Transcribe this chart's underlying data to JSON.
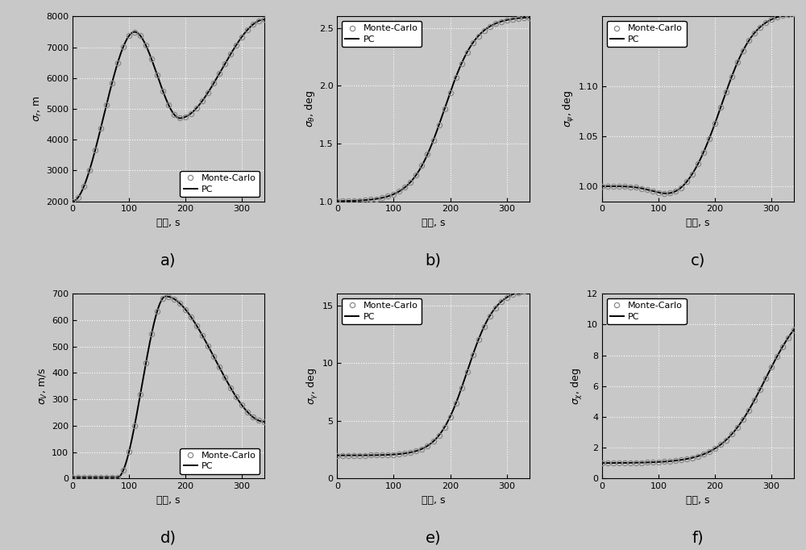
{
  "subplots": [
    {
      "label": "a)",
      "ylabel": "$\\sigma_r$, m",
      "ylim": [
        2000,
        8000
      ],
      "yticks": [
        2000,
        3000,
        4000,
        5000,
        6000,
        7000,
        8000
      ],
      "legend_loc": "lower right"
    },
    {
      "label": "b)",
      "ylabel": "$\\sigma_\\theta$, deg",
      "ylim": [
        1.0,
        2.6
      ],
      "yticks": [
        1.0,
        1.5,
        2.0,
        2.5
      ],
      "legend_loc": "upper left"
    },
    {
      "label": "c)",
      "ylabel": "$\\sigma_\\psi$, deg",
      "ylim": [
        0.985,
        1.17
      ],
      "yticks": [
        1.0,
        1.05,
        1.1
      ],
      "legend_loc": "upper left"
    },
    {
      "label": "d)",
      "ylabel": "$\\sigma_V$, m/s",
      "ylim": [
        0,
        700
      ],
      "yticks": [
        0,
        100,
        200,
        300,
        400,
        500,
        600,
        700
      ],
      "legend_loc": "lower right"
    },
    {
      "label": "e)",
      "ylabel": "$\\sigma_\\gamma$, deg",
      "ylim": [
        0,
        16
      ],
      "yticks": [
        0,
        5,
        10,
        15
      ],
      "legend_loc": "upper left"
    },
    {
      "label": "f)",
      "ylabel": "$\\sigma_\\chi$, deg",
      "ylim": [
        0,
        12
      ],
      "yticks": [
        0,
        2,
        4,
        6,
        8,
        10,
        12
      ],
      "legend_loc": "upper left"
    }
  ],
  "xlabel": "时间, s",
  "xlim": [
    0,
    340
  ],
  "xticks": [
    0,
    100,
    200,
    300
  ],
  "mc_label": "Monte-Carlo",
  "pc_label": "PC",
  "bg_color": "#c8c8c8",
  "axes_bg": "#c8c8c8",
  "line_color": "#000000",
  "circle_color": "#888888",
  "fig_bg": "#c8c8c8",
  "grid_color": "#e8e8e8",
  "n_dots": 35,
  "n_line": 800
}
